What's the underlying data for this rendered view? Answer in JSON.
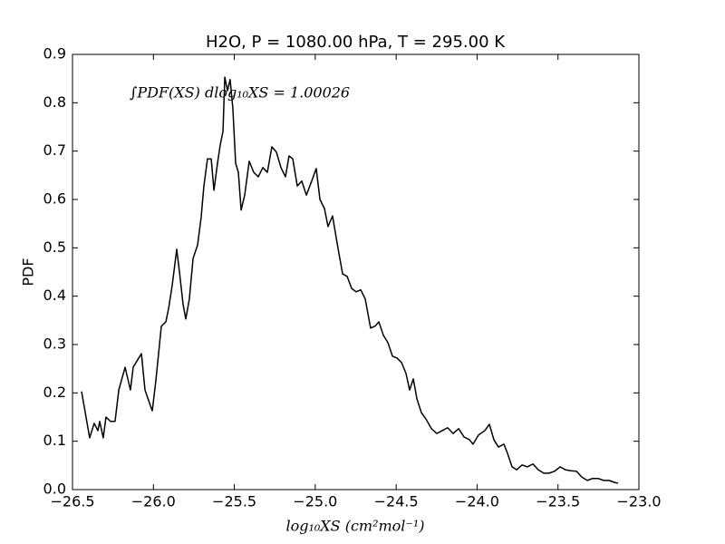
{
  "chart_data": {
    "type": "line",
    "title": "H2O, P = 1080.00 hPa, T = 295.00 K",
    "xlabel": "log₁₀XS (cm²mol⁻¹)",
    "ylabel": "PDF",
    "annotation": "∫PDF(XS) dlog₁₀XS = 1.00026",
    "xlim": [
      -26.5,
      -23.0
    ],
    "ylim": [
      0,
      0.9
    ],
    "xticks": [
      {
        "value": -26.5,
        "label": "−26.5"
      },
      {
        "value": -26.0,
        "label": "−26.0"
      },
      {
        "value": -25.5,
        "label": "−25.5"
      },
      {
        "value": -25.0,
        "label": "−25.0"
      },
      {
        "value": -24.5,
        "label": "−24.5"
      },
      {
        "value": -24.0,
        "label": "−24.0"
      },
      {
        "value": -23.5,
        "label": "−23.5"
      },
      {
        "value": -23.0,
        "label": "−23.0"
      }
    ],
    "yticks": [
      {
        "value": 0,
        "label": "0.0"
      },
      0.1,
      0.2,
      0.3,
      0.4,
      0.5,
      0.6,
      0.7,
      0.8,
      0.9
    ],
    "grid": false,
    "series": [
      {
        "color": "#000000",
        "x": [
          -26.444,
          -26.394,
          -26.366,
          -26.343,
          -26.332,
          -26.31,
          -26.293,
          -26.265,
          -26.237,
          -26.214,
          -26.175,
          -26.142,
          -26.125,
          -26.091,
          -26.074,
          -26.052,
          -26.018,
          -26.007,
          -25.985,
          -25.951,
          -25.923,
          -25.906,
          -25.884,
          -25.856,
          -25.839,
          -25.817,
          -25.8,
          -25.778,
          -25.755,
          -25.727,
          -25.705,
          -25.688,
          -25.666,
          -25.643,
          -25.626,
          -25.604,
          -25.587,
          -25.57,
          -25.559,
          -25.542,
          -25.526,
          -25.509,
          -25.492,
          -25.475,
          -25.458,
          -25.436,
          -25.408,
          -25.38,
          -25.352,
          -25.324,
          -25.296,
          -25.268,
          -25.24,
          -25.212,
          -25.184,
          -25.162,
          -25.139,
          -25.111,
          -25.083,
          -25.055,
          -25.022,
          -24.994,
          -24.971,
          -24.943,
          -24.921,
          -24.893,
          -24.865,
          -24.831,
          -24.803,
          -24.775,
          -24.747,
          -24.719,
          -24.691,
          -24.658,
          -24.63,
          -24.607,
          -24.579,
          -24.551,
          -24.523,
          -24.495,
          -24.467,
          -24.439,
          -24.417,
          -24.394,
          -24.372,
          -24.344,
          -24.316,
          -24.282,
          -24.249,
          -24.215,
          -24.182,
          -24.148,
          -24.114,
          -24.081,
          -24.047,
          -24.025,
          -23.991,
          -23.952,
          -23.924,
          -23.896,
          -23.868,
          -23.834,
          -23.812,
          -23.784,
          -23.756,
          -23.722,
          -23.689,
          -23.655,
          -23.622,
          -23.588,
          -23.554,
          -23.521,
          -23.487,
          -23.454,
          -23.42,
          -23.386,
          -23.353,
          -23.319,
          -23.286,
          -23.252,
          -23.218,
          -23.185,
          -23.151,
          -23.129
        ],
        "values": [
          0.203,
          0.107,
          0.137,
          0.122,
          0.141,
          0.107,
          0.15,
          0.141,
          0.141,
          0.206,
          0.253,
          0.206,
          0.253,
          0.272,
          0.281,
          0.206,
          0.173,
          0.163,
          0.225,
          0.338,
          0.347,
          0.375,
          0.422,
          0.497,
          0.45,
          0.384,
          0.353,
          0.394,
          0.478,
          0.506,
          0.563,
          0.628,
          0.684,
          0.684,
          0.619,
          0.675,
          0.713,
          0.741,
          0.853,
          0.825,
          0.848,
          0.788,
          0.675,
          0.656,
          0.578,
          0.609,
          0.679,
          0.656,
          0.647,
          0.666,
          0.656,
          0.709,
          0.698,
          0.666,
          0.647,
          0.69,
          0.684,
          0.628,
          0.638,
          0.609,
          0.638,
          0.664,
          0.6,
          0.581,
          0.544,
          0.566,
          0.51,
          0.446,
          0.441,
          0.416,
          0.409,
          0.413,
          0.394,
          0.334,
          0.338,
          0.347,
          0.319,
          0.304,
          0.276,
          0.272,
          0.263,
          0.24,
          0.206,
          0.229,
          0.188,
          0.159,
          0.146,
          0.126,
          0.116,
          0.122,
          0.128,
          0.116,
          0.126,
          0.109,
          0.103,
          0.094,
          0.113,
          0.122,
          0.135,
          0.103,
          0.088,
          0.094,
          0.075,
          0.047,
          0.041,
          0.051,
          0.047,
          0.053,
          0.041,
          0.034,
          0.034,
          0.038,
          0.047,
          0.041,
          0.039,
          0.038,
          0.026,
          0.019,
          0.023,
          0.023,
          0.019,
          0.019,
          0.015,
          0.013
        ]
      }
    ]
  }
}
